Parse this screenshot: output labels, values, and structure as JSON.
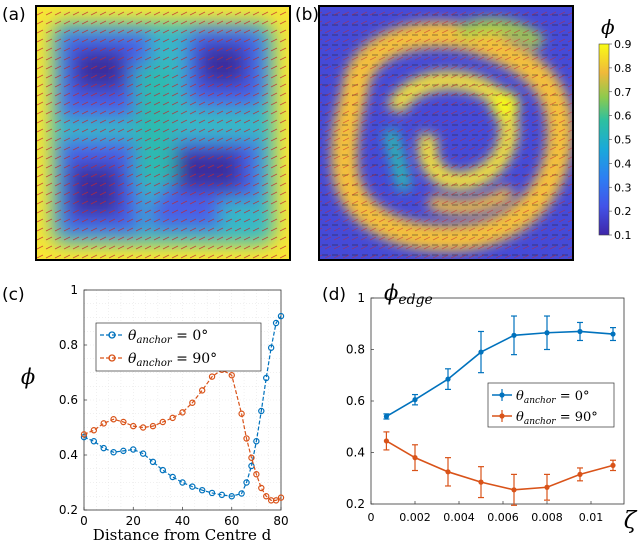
{
  "panels": {
    "a": "(a)",
    "b": "(b)",
    "c": "(c)",
    "d": "(d)"
  },
  "colorbar": {
    "symbol": "ϕ",
    "ticks": [
      "0.9",
      "0.8",
      "0.7",
      "0.6",
      "0.5",
      "0.4",
      "0.3",
      "0.2",
      "0.1"
    ],
    "range": [
      0.1,
      0.9
    ],
    "colormap": "parula"
  },
  "colors": {
    "blue": "#0072bd",
    "orange": "#d95319"
  },
  "chart_data": [
    {
      "panel": "c",
      "type": "scatter",
      "title": "",
      "xlabel": "Distance from Centre d",
      "ylabel": "ϕ",
      "xlim": [
        0,
        80
      ],
      "ylim": [
        0.2,
        1.0
      ],
      "xticks": [
        "0",
        "20",
        "40",
        "60",
        "80"
      ],
      "yticks": [
        "0.2",
        "0.4",
        "0.6",
        "0.8",
        "1"
      ],
      "grid": true,
      "legend_position": "top-left",
      "series": [
        {
          "name": "θanchor = 0°",
          "name_main": "θ",
          "name_sub": "anchor",
          "name_rest": " = 0°",
          "x": [
            0,
            4,
            8,
            12,
            16,
            20,
            24,
            28,
            32,
            36,
            40,
            44,
            48,
            52,
            56,
            60,
            64,
            66,
            68,
            70,
            72,
            74,
            76,
            78,
            80
          ],
          "y": [
            0.465,
            0.45,
            0.425,
            0.41,
            0.415,
            0.42,
            0.405,
            0.375,
            0.345,
            0.32,
            0.3,
            0.285,
            0.272,
            0.262,
            0.255,
            0.25,
            0.26,
            0.3,
            0.36,
            0.45,
            0.56,
            0.68,
            0.79,
            0.88,
            0.905
          ]
        },
        {
          "name": "θanchor = 90°",
          "name_main": "θ",
          "name_sub": "anchor",
          "name_rest": " = 90°",
          "x": [
            0,
            4,
            8,
            12,
            16,
            20,
            24,
            28,
            32,
            36,
            40,
            44,
            48,
            52,
            56,
            60,
            64,
            66,
            68,
            70,
            72,
            74,
            76,
            78,
            80
          ],
          "y": [
            0.475,
            0.49,
            0.515,
            0.53,
            0.52,
            0.505,
            0.5,
            0.505,
            0.52,
            0.535,
            0.555,
            0.59,
            0.635,
            0.685,
            0.71,
            0.69,
            0.55,
            0.46,
            0.39,
            0.33,
            0.28,
            0.25,
            0.235,
            0.235,
            0.245
          ]
        }
      ]
    },
    {
      "panel": "d",
      "type": "line",
      "title": "",
      "xlabel": "ζ",
      "ylabel": "ϕedge",
      "ylabel_main": "ϕ",
      "ylabel_sub": "edge",
      "xlim": [
        0,
        0.0115
      ],
      "ylim": [
        0.2,
        1.0
      ],
      "xticks": [
        "0",
        "0.002",
        "0.004",
        "0.006",
        "0.008",
        "0.01"
      ],
      "yticks": [
        "0.2",
        "0.4",
        "0.6",
        "0.8",
        "1"
      ],
      "grid": false,
      "legend_position": "center-right",
      "series": [
        {
          "name": "θanchor = 0°",
          "name_main": "θ",
          "name_sub": "anchor",
          "name_rest": " = 0°",
          "x": [
            0.0007,
            0.002,
            0.0035,
            0.005,
            0.0065,
            0.008,
            0.0095,
            0.011
          ],
          "y": [
            0.54,
            0.605,
            0.685,
            0.79,
            0.855,
            0.865,
            0.87,
            0.86
          ],
          "err": [
            0.01,
            0.02,
            0.04,
            0.08,
            0.075,
            0.065,
            0.035,
            0.025
          ]
        },
        {
          "name": "θanchor = 90°",
          "name_main": "θ",
          "name_sub": "anchor",
          "name_rest": " = 90°",
          "x": [
            0.0007,
            0.002,
            0.0035,
            0.005,
            0.0065,
            0.008,
            0.0095,
            0.011
          ],
          "y": [
            0.445,
            0.38,
            0.325,
            0.285,
            0.255,
            0.265,
            0.315,
            0.35
          ],
          "err": [
            0.035,
            0.05,
            0.055,
            0.06,
            0.06,
            0.05,
            0.025,
            0.02
          ]
        }
      ]
    }
  ]
}
